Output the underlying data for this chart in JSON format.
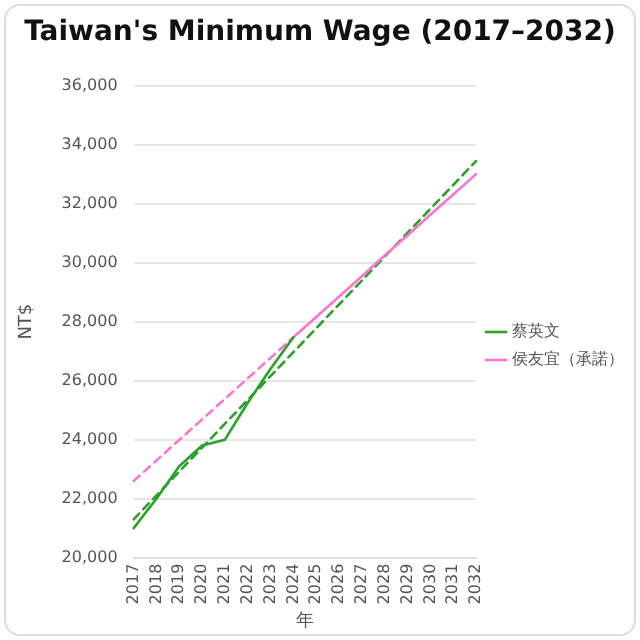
{
  "chart_data": {
    "type": "line",
    "title": "Taiwan's Minimum Wage (2017–2032)",
    "xlabel": "年",
    "ylabel": "NT$",
    "categories": [
      "2017",
      "2018",
      "2019",
      "2020",
      "2021",
      "2022",
      "2023",
      "2024",
      "2025",
      "2026",
      "2027",
      "2028",
      "2029",
      "2030",
      "2031",
      "2032"
    ],
    "series": [
      {
        "name": "蔡英文",
        "color": "#2ca02c",
        "values": [
          21000,
          22000,
          23100,
          23800,
          24000,
          25250,
          26400,
          27470,
          null,
          null,
          null,
          null,
          null,
          null,
          null,
          null
        ]
      },
      {
        "name": "侯友宜（承諾）",
        "color": "#ff77cc",
        "values": [
          null,
          null,
          null,
          null,
          null,
          null,
          null,
          27470,
          28160,
          28850,
          29540,
          30240,
          30930,
          31620,
          32310,
          33000
        ]
      },
      {
        "color": "#2ca02c",
        "line_style": "dashed",
        "values": [
          21300,
          null,
          null,
          null,
          null,
          null,
          null,
          null,
          null,
          null,
          null,
          null,
          null,
          null,
          null,
          33440
        ]
      },
      {
        "color": "#ff77cc",
        "line_style": "dashed",
        "values": [
          22600,
          null,
          null,
          null,
          null,
          null,
          null,
          27470,
          null,
          null,
          null,
          null,
          null,
          null,
          null,
          null
        ]
      }
    ],
    "ylim": [
      20000,
      36000
    ],
    "yticks": [
      {
        "value": 20000,
        "label": "20,000"
      },
      {
        "value": 22000,
        "label": "22,000"
      },
      {
        "value": 24000,
        "label": "24,000"
      },
      {
        "value": 26000,
        "label": "26,000"
      },
      {
        "value": 28000,
        "label": "28,000"
      },
      {
        "value": 30000,
        "label": "30,000"
      },
      {
        "value": 32000,
        "label": "32,000"
      },
      {
        "value": 34000,
        "label": "34,000"
      },
      {
        "value": 36000,
        "label": "36,000"
      }
    ],
    "grid": "y",
    "legend": "right",
    "marker": "none",
    "line_style": "solid"
  }
}
